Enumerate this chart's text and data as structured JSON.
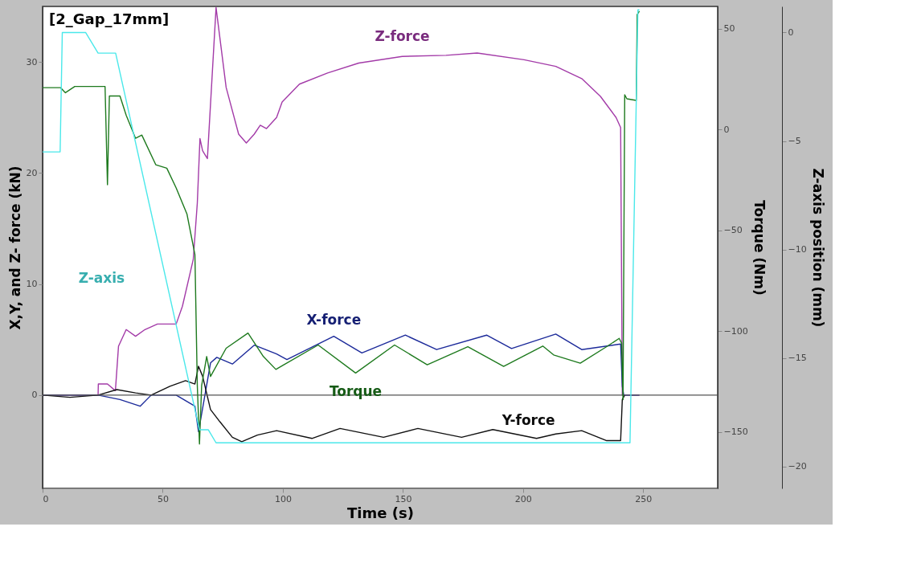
{
  "chart_data": {
    "type": "line",
    "xlabel": "Time (s)",
    "ylabel": "X,Y, and Z- force (kN)",
    "y2label": "Torque (Nm)",
    "y3label": "Z-axis position (mm)",
    "annotations": [
      "[2_Gap_17mm]"
    ],
    "xlim": [
      0,
      281
    ],
    "xticks": [
      0,
      50,
      100,
      150,
      200,
      250
    ],
    "ylim": [
      -8.4,
      35
    ],
    "yticks": [
      0,
      10,
      20,
      30
    ],
    "y2lim": [
      -178,
      61
    ],
    "y2ticks": [
      -150,
      -100,
      -50,
      0,
      50
    ],
    "y3lim": [
      -21,
      1.2
    ],
    "y3ticks": [
      -20,
      -15,
      -10,
      -5,
      0
    ],
    "grid": false,
    "marker": "none",
    "line_style": "solid",
    "ref_lines": [
      {
        "axis": "y",
        "value": 0,
        "color": "#555555"
      }
    ],
    "series": [
      {
        "name": "Z-force",
        "color": "#a33ba8",
        "axis": "y",
        "x": [
          0,
          23.1,
          23.2,
          27,
          30.3,
          31.6,
          34.8,
          38.7,
          42.6,
          47.8,
          55.6,
          58.2,
          62.7,
          64.4,
          65.5,
          66.6,
          68.6,
          72.2,
          76.4,
          81.6,
          84.8,
          88.1,
          90.6,
          93.2,
          97.4,
          99.7,
          106.9,
          118.6,
          131.6,
          149.7,
          167.9,
          180.9,
          200.4,
          213.6,
          224.4,
          232.2,
          238.7,
          240.6,
          241.3,
          248.4
        ],
        "values": [
          0,
          0,
          1.0,
          1.0,
          0.4,
          4.4,
          5.9,
          5.3,
          5.9,
          6.4,
          6.4,
          8.0,
          12.2,
          17.3,
          23.1,
          22.0,
          21.3,
          34.9,
          27.7,
          23.5,
          22.7,
          23.5,
          24.3,
          24.0,
          25.0,
          26.4,
          28.0,
          29.0,
          29.9,
          30.5,
          30.6,
          30.8,
          30.2,
          29.6,
          28.5,
          26.9,
          25.0,
          24.1,
          0,
          0
        ]
      },
      {
        "name": "X-force",
        "color": "#1c2a9a",
        "axis": "y",
        "x": [
          0,
          23.1,
          32.2,
          40.6,
          45.2,
          55.6,
          63.4,
          64.9,
          67,
          69.9,
          72.5,
          79,
          88.1,
          97.4,
          101.7,
          121.2,
          132.9,
          151,
          164,
          184.8,
          195.2,
          213.6,
          224.4,
          240.6,
          241.3,
          241.9,
          248.4
        ],
        "values": [
          0,
          0,
          -0.4,
          -1.0,
          0,
          0,
          -1.0,
          -3.3,
          -0.7,
          2.9,
          3.4,
          2.8,
          4.5,
          3.7,
          3.2,
          5.3,
          3.8,
          5.4,
          4.1,
          5.4,
          4.2,
          5.5,
          4.1,
          4.6,
          0.8,
          0,
          0
        ]
      },
      {
        "name": "Y-force",
        "color": "#111111",
        "axis": "y",
        "x": [
          0,
          11.4,
          23.1,
          30.9,
          38.7,
          45.2,
          53,
          59.5,
          63.4,
          64.9,
          66.6,
          69.9,
          73.8,
          79,
          82.9,
          89.4,
          97.4,
          112.1,
          123.8,
          141.9,
          156.2,
          174.4,
          187.4,
          205.6,
          213.6,
          224.4,
          234.8,
          240.6,
          241.3,
          242.3
        ],
        "values": [
          0,
          -0.2,
          0,
          0.5,
          0.2,
          0,
          0.8,
          1.3,
          1.0,
          2.6,
          1.7,
          -1.3,
          -2.4,
          -3.8,
          -4.2,
          -3.6,
          -3.2,
          -3.9,
          -3.0,
          -3.8,
          -3.0,
          -3.8,
          -3.1,
          -3.9,
          -3.5,
          -3.2,
          -4.1,
          -4.1,
          -0.4,
          0
        ]
      },
      {
        "name": "Torque",
        "color": "#1e7a1e",
        "axis": "y2",
        "x": [
          0,
          7.5,
          9.5,
          13.4,
          26,
          27,
          27.8,
          32.2,
          34.8,
          38.7,
          41.3,
          47.1,
          51.7,
          55.6,
          60.1,
          63.4,
          64.4,
          65.3,
          66.2,
          68.3,
          69.9,
          76.4,
          85.5,
          91.9,
          97.1,
          100.4,
          114.7,
          130.3,
          146.5,
          160.1,
          177,
          191.9,
          208.2,
          212.7,
          223.8,
          234.8,
          240,
          241,
          241.6,
          242.3,
          243.2,
          247.1,
          247.5,
          248.4
        ],
        "values": [
          20.7,
          20.7,
          18.2,
          21.3,
          21.3,
          -27.4,
          16.6,
          16.6,
          7,
          -4.4,
          -2.8,
          -17.5,
          -19.2,
          -29,
          -42,
          -62,
          -127,
          -156,
          -127,
          -112.6,
          -122.5,
          -108.5,
          -101,
          -112.6,
          -119,
          -116.7,
          -106.9,
          -120.8,
          -106.9,
          -116.7,
          -107.7,
          -117.5,
          -107.4,
          -111.8,
          -115.9,
          -107.7,
          -103.6,
          -106,
          -134,
          17.2,
          15.2,
          14.4,
          57,
          58.7
        ]
      },
      {
        "name": "Z-axis",
        "color": "#4ae8ea",
        "axis": "y3",
        "x": [
          0,
          7.3,
          8.2,
          17.9,
          23.1,
          30.4,
          65.3,
          69,
          72.2,
          244.5,
          247.8,
          248.4
        ],
        "values": [
          -5.5,
          -5.5,
          0,
          0,
          -0.95,
          -0.95,
          -18.3,
          -18.3,
          -18.9,
          -18.9,
          1.04,
          1.04
        ]
      }
    ]
  }
}
